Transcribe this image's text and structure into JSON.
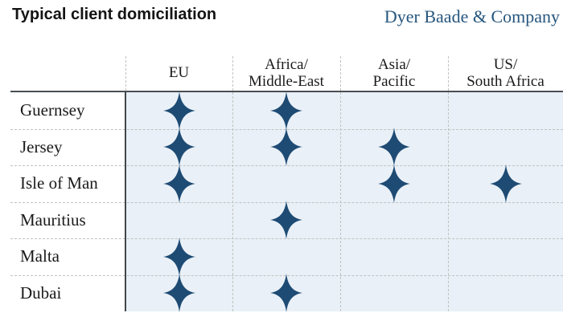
{
  "title": "Typical client domiciliation",
  "brand": "Dyer Baade & Company",
  "colors": {
    "star": "#1e4b74",
    "panel_bg": "#e9f0f7",
    "brand_text": "#26567e",
    "grid_dashed": "#c2c2c2",
    "grid_solid": "#4a4e52",
    "text": "#1a1a1a"
  },
  "chart_data": {
    "type": "table",
    "title": "Typical client domiciliation",
    "columns": [
      "EU",
      "Africa/Middle-East",
      "Asia/Pacific",
      "US/South Africa"
    ],
    "columns_lines": [
      [
        "EU"
      ],
      [
        "Africa/",
        "Middle-East"
      ],
      [
        "Asia/",
        "Pacific"
      ],
      [
        "US/",
        "South Africa"
      ]
    ],
    "rows": [
      "Guernsey",
      "Jersey",
      "Isle of Man",
      "Mauritius",
      "Malta",
      "Dubai"
    ],
    "marker": "four-pointed-star",
    "matrix": [
      [
        1,
        1,
        0,
        0
      ],
      [
        1,
        1,
        1,
        0
      ],
      [
        1,
        0,
        1,
        1
      ],
      [
        0,
        1,
        0,
        0
      ],
      [
        1,
        0,
        0,
        0
      ],
      [
        1,
        1,
        0,
        0
      ]
    ]
  }
}
